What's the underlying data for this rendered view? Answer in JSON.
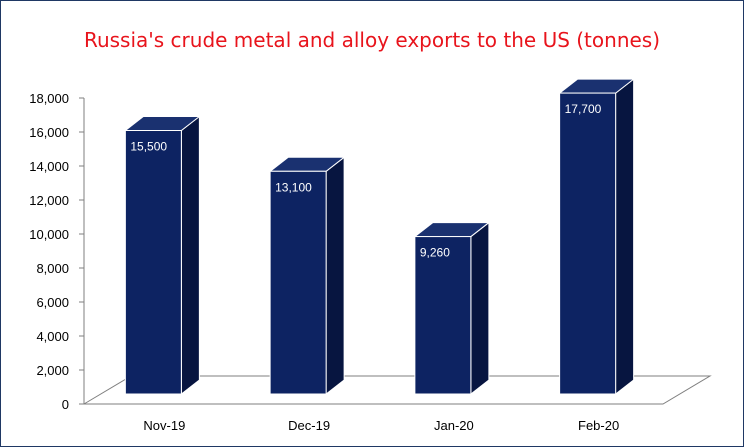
{
  "chart_data": {
    "type": "bar",
    "title": "Russia's crude metal and alloy exports to the US (tonnes)",
    "categories": [
      "Nov-19",
      "Dec-19",
      "Jan-20",
      "Feb-20"
    ],
    "values": [
      15500,
      13100,
      9260,
      17700
    ],
    "data_labels": [
      "15,500",
      "13,100",
      "9,260",
      "17,700"
    ],
    "y_ticks": [
      "0",
      "2,000",
      "4,000",
      "6,000",
      "8,000",
      "10,000",
      "12,000",
      "14,000",
      "16,000",
      "18,000"
    ],
    "ylim": [
      0,
      18000
    ],
    "xlabel": "",
    "ylabel": "",
    "grid": false,
    "legend": "none",
    "style": "3d-column",
    "colors": {
      "bar_front": "#0d2362",
      "bar_side": "#071540",
      "bar_top": "#1a3170",
      "title": "#e8141c",
      "frame": "#1f3864"
    }
  }
}
